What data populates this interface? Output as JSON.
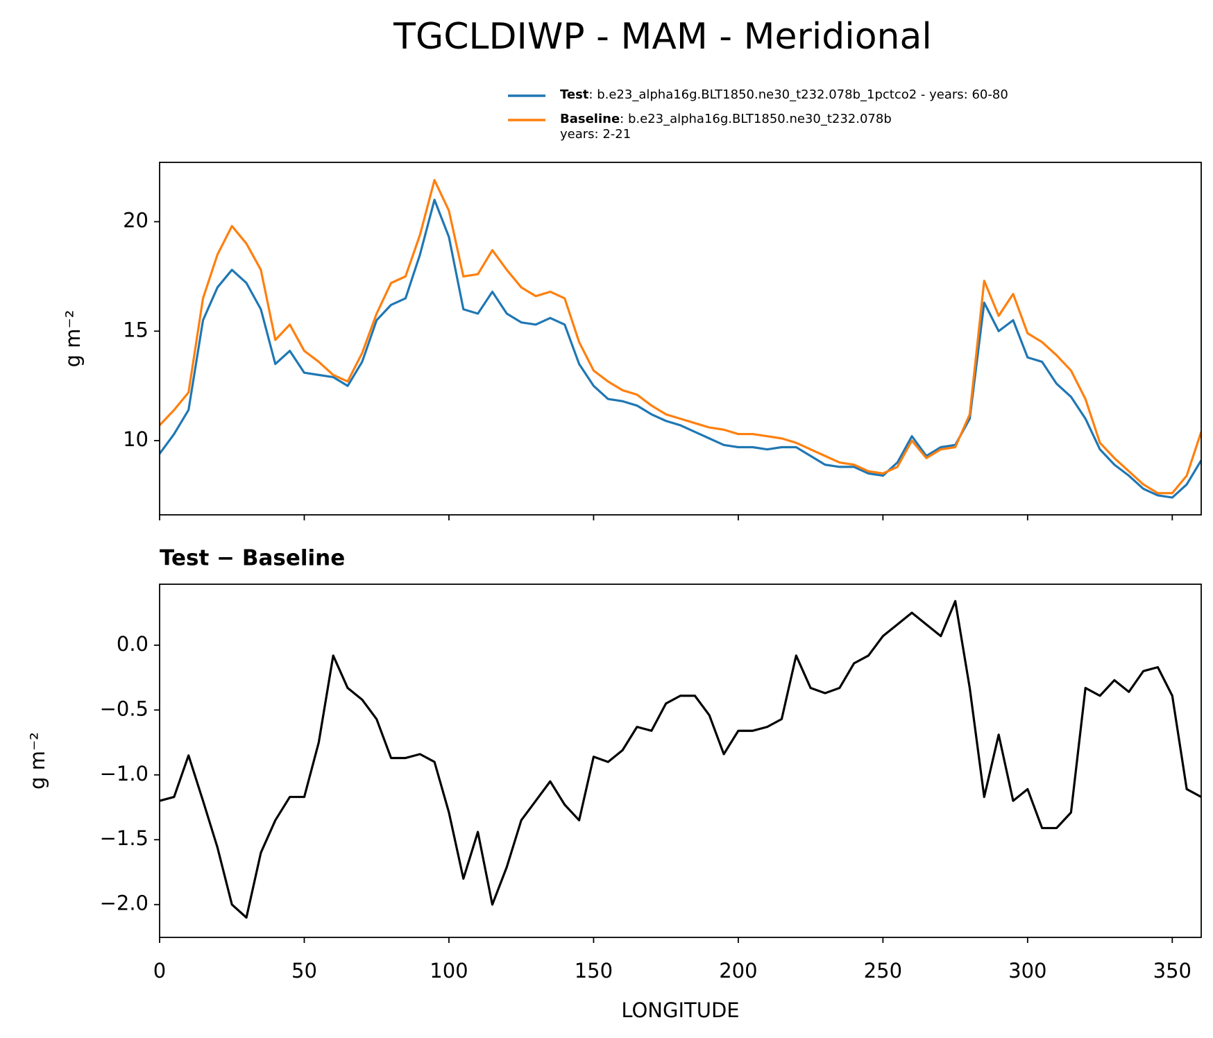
{
  "title": "TGCLDIWP - MAM - Meridional",
  "chart_data": [
    {
      "type": "line",
      "ylabel": "g m⁻²",
      "x": [
        0,
        5,
        10,
        15,
        20,
        25,
        30,
        35,
        40,
        45,
        50,
        55,
        60,
        65,
        70,
        75,
        80,
        85,
        90,
        95,
        100,
        105,
        110,
        115,
        120,
        125,
        130,
        135,
        140,
        145,
        150,
        155,
        160,
        165,
        170,
        175,
        180,
        185,
        190,
        195,
        200,
        205,
        210,
        215,
        220,
        225,
        230,
        235,
        240,
        245,
        250,
        255,
        260,
        265,
        270,
        275,
        280,
        285,
        290,
        295,
        300,
        305,
        310,
        315,
        320,
        325,
        330,
        335,
        340,
        345,
        350,
        355,
        360
      ],
      "series": [
        {
          "name": "Test",
          "legend_text": [
            ": b.e23_alpha16g.BLT1850.ne30_t232.078b_1pctco2 - years: 60-80"
          ],
          "color": "#1f77b4",
          "values": [
            9.4,
            10.3,
            11.4,
            15.5,
            17.0,
            17.8,
            17.2,
            16.0,
            13.5,
            14.1,
            13.1,
            13.0,
            12.9,
            12.5,
            13.6,
            15.5,
            16.2,
            16.5,
            18.5,
            21.0,
            19.3,
            16.0,
            15.8,
            16.8,
            15.8,
            15.4,
            15.3,
            15.6,
            15.3,
            13.5,
            12.5,
            11.9,
            11.8,
            11.6,
            11.2,
            10.9,
            10.7,
            10.4,
            10.1,
            9.8,
            9.7,
            9.7,
            9.6,
            9.7,
            9.7,
            9.3,
            8.9,
            8.8,
            8.8,
            8.5,
            8.4,
            9.0,
            10.2,
            9.3,
            9.7,
            9.8,
            11.0,
            16.3,
            15.0,
            15.5,
            13.8,
            13.6,
            12.6,
            12.0,
            11.0,
            9.6,
            8.9,
            8.4,
            7.8,
            7.5,
            7.4,
            8.0,
            9.1
          ]
        },
        {
          "name": "Baseline",
          "legend_text": [
            ": b.e23_alpha16g.BLT1850.ne30_t232.078b",
            "years: 2-21"
          ],
          "color": "#ff7f0e",
          "values": [
            10.7,
            11.4,
            12.2,
            16.5,
            18.5,
            19.8,
            19.0,
            17.8,
            14.6,
            15.3,
            14.1,
            13.6,
            13.0,
            12.7,
            14.0,
            15.8,
            17.2,
            17.5,
            19.4,
            21.9,
            20.5,
            17.5,
            17.6,
            18.7,
            17.8,
            17.0,
            16.6,
            16.8,
            16.5,
            14.5,
            13.2,
            12.7,
            12.3,
            12.1,
            11.6,
            11.2,
            11.0,
            10.8,
            10.6,
            10.5,
            10.3,
            10.3,
            10.2,
            10.1,
            9.9,
            9.6,
            9.3,
            9.0,
            8.9,
            8.6,
            8.5,
            8.8,
            10.0,
            9.2,
            9.6,
            9.7,
            11.2,
            17.3,
            15.7,
            16.7,
            14.9,
            14.5,
            13.9,
            13.2,
            11.9,
            9.9,
            9.2,
            8.6,
            8.0,
            7.6,
            7.6,
            8.4,
            10.4
          ]
        }
      ],
      "xlim": [
        0,
        360
      ],
      "xticks": [
        0,
        50,
        100,
        150,
        200,
        250,
        300,
        350
      ],
      "show_xtick_labels": false,
      "ylim": [
        6.61,
        22.71
      ],
      "yticks": [
        10,
        15,
        20
      ]
    },
    {
      "type": "line",
      "title": "Test − Baseline",
      "ylabel": "g m⁻²",
      "xlabel": "LONGITUDE",
      "x": [
        0,
        5,
        10,
        15,
        20,
        25,
        30,
        35,
        40,
        45,
        50,
        55,
        60,
        65,
        70,
        75,
        80,
        85,
        90,
        95,
        100,
        105,
        110,
        115,
        120,
        125,
        130,
        135,
        140,
        145,
        150,
        155,
        160,
        165,
        170,
        175,
        180,
        185,
        190,
        195,
        200,
        205,
        210,
        215,
        220,
        225,
        230,
        235,
        240,
        245,
        250,
        255,
        260,
        265,
        270,
        275,
        280,
        285,
        290,
        295,
        300,
        305,
        310,
        315,
        320,
        325,
        330,
        335,
        340,
        345,
        350,
        355,
        360
      ],
      "series": [
        {
          "color": "#000000",
          "values": [
            -1.2,
            -1.17,
            -0.85,
            -1.2,
            -1.56,
            -2.0,
            -2.1,
            -1.6,
            -1.35,
            -1.17,
            -1.17,
            -0.75,
            -0.08,
            -0.33,
            -0.42,
            -0.57,
            -0.87,
            -0.87,
            -0.84,
            -0.9,
            -1.29,
            -1.8,
            -1.44,
            -2.0,
            -1.71,
            -1.35,
            -1.2,
            -1.05,
            -1.23,
            -1.35,
            -0.86,
            -0.9,
            -0.81,
            -0.63,
            -0.66,
            -0.45,
            -0.39,
            -0.39,
            -0.54,
            -0.84,
            -0.66,
            -0.66,
            -0.63,
            -0.57,
            -0.08,
            -0.33,
            -0.37,
            -0.33,
            -0.14,
            -0.08,
            0.07,
            0.16,
            0.25,
            0.16,
            0.07,
            0.34,
            -0.33,
            -1.17,
            -0.69,
            -1.2,
            -1.11,
            -1.41,
            -1.41,
            -1.29,
            -0.33,
            -0.39,
            -0.27,
            -0.36,
            -0.2,
            -0.17,
            -0.39,
            -1.11,
            -1.17
          ]
        }
      ],
      "xlim": [
        0,
        360
      ],
      "xticks": [
        0,
        50,
        100,
        150,
        200,
        250,
        300,
        350
      ],
      "show_xtick_labels": true,
      "ylim": [
        -2.253,
        0.47
      ],
      "yticks": [
        {
          "value": 0,
          "label": "0.0"
        },
        {
          "value": -0.5,
          "label": "−0.5"
        },
        {
          "value": -1,
          "label": "−1.0"
        },
        {
          "value": -1.5,
          "label": "−1.5"
        },
        {
          "value": -2,
          "label": "−2.0"
        }
      ]
    }
  ]
}
